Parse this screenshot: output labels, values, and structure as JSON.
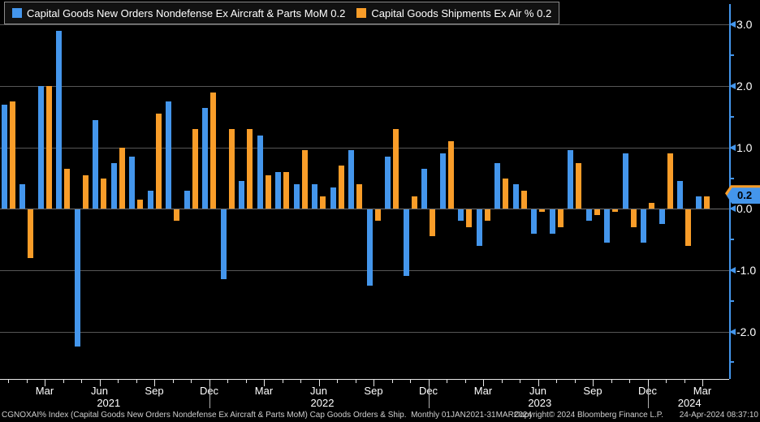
{
  "legend": {
    "items": [
      {
        "label": "Capital Goods New Orders Nondefense Ex Aircraft & Parts MoM 0.2",
        "color": "#4496EC"
      },
      {
        "label": "Capital Goods Shipments Ex Air % 0.2",
        "color": "#F99D29"
      }
    ]
  },
  "footer": {
    "left": "CGNOXAI% Index (Capital Goods New Orders Nondefense Ex Aircraft & Parts MoM) Cap Goods Orders & Ship.  Monthly 01JAN2021-31MAR2024",
    "copyright": "Copyright© 2024 Bloomberg Finance L.P.",
    "timestamp": "24-Apr-2024 08:37:10"
  },
  "chart_data": {
    "type": "bar",
    "title": "",
    "xlabel": "",
    "ylabel": "",
    "ylim": [
      -2.8,
      3.05
    ],
    "grid": true,
    "legend_position": "top-left",
    "categories": [
      "Jan 2021",
      "Feb 2021",
      "Mar 2021",
      "Apr 2021",
      "May 2021",
      "Jun 2021",
      "Jul 2021",
      "Aug 2021",
      "Sep 2021",
      "Oct 2021",
      "Nov 2021",
      "Dec 2021",
      "Jan 2022",
      "Feb 2022",
      "Mar 2022",
      "Apr 2022",
      "May 2022",
      "Jun 2022",
      "Jul 2022",
      "Aug 2022",
      "Sep 2022",
      "Oct 2022",
      "Nov 2022",
      "Dec 2022",
      "Jan 2023",
      "Feb 2023",
      "Mar 2023",
      "Apr 2023",
      "May 2023",
      "Jun 2023",
      "Jul 2023",
      "Aug 2023",
      "Sep 2023",
      "Oct 2023",
      "Nov 2023",
      "Dec 2023",
      "Jan 2024",
      "Feb 2024",
      "Mar 2024"
    ],
    "series": [
      {
        "name": "Capital Goods New Orders Nondefense Ex Aircraft & Parts MoM",
        "color": "#4496EC",
        "last_value": 0.2,
        "values": [
          1.7,
          0.4,
          2.0,
          2.9,
          -2.25,
          1.45,
          0.75,
          0.85,
          0.3,
          1.75,
          0.3,
          1.65,
          -1.15,
          0.45,
          1.2,
          0.6,
          0.4,
          0.4,
          0.35,
          0.95,
          -1.25,
          0.85,
          -1.1,
          0.65,
          0.9,
          -0.2,
          -0.6,
          0.75,
          0.4,
          -0.4,
          -0.4,
          0.95,
          -0.2,
          -0.55,
          0.9,
          -0.55,
          -0.25,
          0.45,
          0.2
        ]
      },
      {
        "name": "Capital Goods Shipments Ex Air %",
        "color": "#F99D29",
        "last_value": 0.2,
        "values": [
          1.75,
          -0.8,
          2.0,
          0.65,
          0.55,
          0.5,
          1.0,
          0.15,
          1.55,
          -0.2,
          1.3,
          1.9,
          1.3,
          1.3,
          0.55,
          0.6,
          0.95,
          0.2,
          0.7,
          0.4,
          -0.2,
          1.3,
          0.2,
          -0.45,
          1.1,
          -0.3,
          -0.2,
          0.5,
          0.3,
          -0.05,
          -0.3,
          0.75,
          -0.1,
          -0.05,
          -0.3,
          0.1,
          0.9,
          -0.6,
          0.2
        ]
      }
    ],
    "y_axis": {
      "major": [
        {
          "v": 3.0,
          "t": "3.0"
        },
        {
          "v": 2.0,
          "t": "2.0"
        },
        {
          "v": 1.0,
          "t": "1.0"
        },
        {
          "v": 0.0,
          "t": "0.0"
        },
        {
          "v": -1.0,
          "t": "-1.0"
        },
        {
          "v": -2.0,
          "t": "-2.0"
        }
      ],
      "minor": [
        2.5,
        1.5,
        0.5,
        -0.5,
        -1.5,
        -2.5
      ],
      "badge": {
        "text": "0.2",
        "color": "#4496EC",
        "secondary_color": "#F99D29"
      }
    },
    "x_axis": {
      "tick_labels": [
        {
          "i": 2,
          "t": "Mar"
        },
        {
          "i": 5,
          "t": "Jun"
        },
        {
          "i": 8,
          "t": "Sep"
        },
        {
          "i": 11,
          "t": "Dec"
        },
        {
          "i": 14,
          "t": "Mar"
        },
        {
          "i": 17,
          "t": "Jun"
        },
        {
          "i": 20,
          "t": "Sep"
        },
        {
          "i": 23,
          "t": "Dec"
        },
        {
          "i": 26,
          "t": "Mar"
        },
        {
          "i": 29,
          "t": "Jun"
        },
        {
          "i": 32,
          "t": "Sep"
        },
        {
          "i": 35,
          "t": "Dec"
        },
        {
          "i": 38,
          "t": "Mar"
        }
      ],
      "year_labels": [
        {
          "i": 5.5,
          "t": "2021"
        },
        {
          "i": 17.2,
          "t": "2022"
        },
        {
          "i": 29.1,
          "t": "2023"
        },
        {
          "i": 37.3,
          "t": "2024"
        }
      ],
      "separators_i": [
        11,
        23,
        35
      ]
    }
  }
}
